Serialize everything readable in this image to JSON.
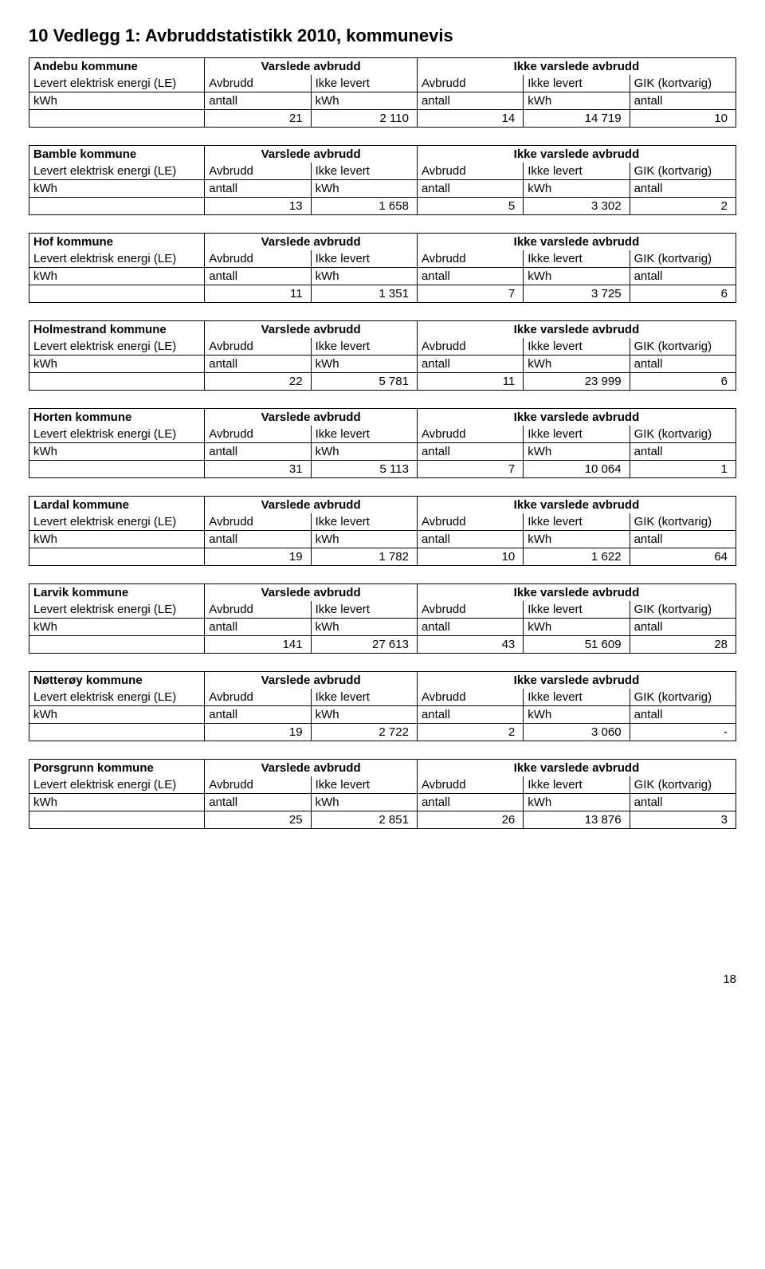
{
  "page": {
    "title": "10 Vedlegg 1: Avbruddstatistikk 2010, kommunevis",
    "page_number": "18"
  },
  "labels": {
    "varslede": "Varslede avbrudd",
    "ikke_varslede": "Ikke varslede avbrudd",
    "le": "Levert elektrisk energi (LE)",
    "avbrudd": "Avbrudd",
    "ikke_levert": "Ikke levert",
    "gik": "GIK (kortvarig)",
    "kwh": "kWh",
    "antall": "antall"
  },
  "tables": [
    {
      "name": "Andebu kommune",
      "v_n": "21",
      "v_kwh": "2 110",
      "iv_n": "14",
      "iv_kwh": "14 719",
      "gik": "10"
    },
    {
      "name": "Bamble kommune",
      "v_n": "13",
      "v_kwh": "1 658",
      "iv_n": "5",
      "iv_kwh": "3 302",
      "gik": "2"
    },
    {
      "name": "Hof kommune",
      "v_n": "11",
      "v_kwh": "1 351",
      "iv_n": "7",
      "iv_kwh": "3 725",
      "gik": "6"
    },
    {
      "name": "Holmestrand kommune",
      "v_n": "22",
      "v_kwh": "5 781",
      "iv_n": "11",
      "iv_kwh": "23 999",
      "gik": "6"
    },
    {
      "name": "Horten kommune",
      "v_n": "31",
      "v_kwh": "5 113",
      "iv_n": "7",
      "iv_kwh": "10 064",
      "gik": "1"
    },
    {
      "name": "Lardal kommune",
      "v_n": "19",
      "v_kwh": "1 782",
      "iv_n": "10",
      "iv_kwh": "1 622",
      "gik": "64"
    },
    {
      "name": "Larvik kommune",
      "v_n": "141",
      "v_kwh": "27 613",
      "iv_n": "43",
      "iv_kwh": "51 609",
      "gik": "28"
    },
    {
      "name": "Nøtterøy kommune",
      "v_n": "19",
      "v_kwh": "2 722",
      "iv_n": "2",
      "iv_kwh": "3 060",
      "gik": "-"
    },
    {
      "name": "Porsgrunn kommune",
      "v_n": "25",
      "v_kwh": "2 851",
      "iv_n": "26",
      "iv_kwh": "13 876",
      "gik": "3"
    }
  ]
}
